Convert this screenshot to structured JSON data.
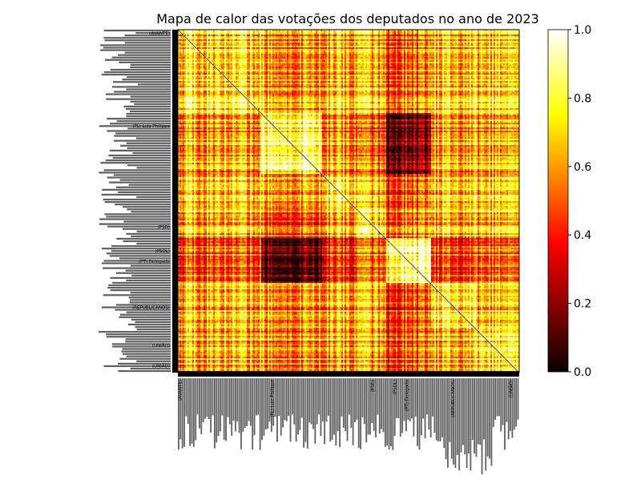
{
  "chart_data": {
    "type": "heatmap",
    "title": "Mapa de calor das votações dos deputados no ano de 2023",
    "xlabel": "",
    "ylabel": "",
    "colormap": "hot",
    "colorbar": {
      "range": [
        0,
        1
      ],
      "ticks": [
        "0.0",
        "0.2",
        "0.4",
        "0.6",
        "0.8",
        "1.0"
      ],
      "tick_values": [
        0,
        0.2,
        0.4,
        0.6,
        0.8,
        1.0
      ]
    },
    "diagonal_value": 1.0,
    "party_groups": [
      {
        "party": "AVANTE",
        "similarity_to": {
          "AVANTE": 0.7,
          "PL": 0.6,
          "PP": 0.65,
          "PSD": 0.65,
          "PSOL": 0.45,
          "PT": 0.5,
          "REPUBLICANOS": 0.65,
          "UNIÃO": 0.65
        }
      },
      {
        "party": "PL",
        "similarity_to": {
          "AVANTE": 0.6,
          "PL": 0.85,
          "PP": 0.6,
          "PSD": 0.5,
          "PSOL": 0.08,
          "PT": 0.1,
          "REPUBLICANOS": 0.6,
          "UNIÃO": 0.6
        }
      },
      {
        "party": "PP",
        "similarity_to": {
          "AVANTE": 0.65,
          "PL": 0.6,
          "PP": 0.75,
          "PSD": 0.65,
          "PSOL": 0.4,
          "PT": 0.45,
          "REPUBLICANOS": 0.65,
          "UNIÃO": 0.65
        }
      },
      {
        "party": "PSD",
        "similarity_to": {
          "AVANTE": 0.65,
          "PL": 0.5,
          "PP": 0.65,
          "PSD": 0.75,
          "PSOL": 0.5,
          "PT": 0.55,
          "REPUBLICANOS": 0.65,
          "UNIÃO": 0.65
        }
      },
      {
        "party": "PSOL",
        "similarity_to": {
          "AVANTE": 0.45,
          "PL": 0.08,
          "PP": 0.4,
          "PSD": 0.5,
          "PSOL": 0.9,
          "PT": 0.85,
          "REPUBLICANOS": 0.4,
          "UNIÃO": 0.45
        }
      },
      {
        "party": "PT",
        "similarity_to": {
          "AVANTE": 0.5,
          "PL": 0.1,
          "PP": 0.45,
          "PSD": 0.55,
          "PSOL": 0.85,
          "PT": 0.9,
          "REPUBLICANOS": 0.45,
          "UNIÃO": 0.5
        }
      },
      {
        "party": "REPUBLICANOS",
        "similarity_to": {
          "AVANTE": 0.65,
          "PL": 0.6,
          "PP": 0.65,
          "PSD": 0.65,
          "PSOL": 0.4,
          "PT": 0.45,
          "REPUBLICANOS": 0.75,
          "UNIÃO": 0.65
        }
      },
      {
        "party": "UNIÃO",
        "similarity_to": {
          "AVANTE": 0.65,
          "PL": 0.6,
          "PP": 0.65,
          "PSD": 0.65,
          "PSOL": 0.45,
          "PT": 0.5,
          "REPUBLICANOS": 0.65,
          "UNIÃO": 0.75
        }
      }
    ],
    "ylabels_legible": [
      {
        "text": "(AVANTE)",
        "fraction": 0.01
      },
      {
        "text": "(PL) Luiz Philippe",
        "fraction": 0.28
      },
      {
        "text": "(PSD)",
        "fraction": 0.575
      },
      {
        "text": "(PSOL)",
        "fraction": 0.645
      },
      {
        "text": "(PT) Delegado",
        "fraction": 0.675
      },
      {
        "text": "(REPUBLICANOS)",
        "fraction": 0.81
      },
      {
        "text": "(UNIÃO)",
        "fraction": 0.92
      },
      {
        "text": "(UNIÃO)",
        "fraction": 0.98
      }
    ],
    "xlabels_legible": [
      {
        "text": "(AVANTE)",
        "fraction": 0.01
      },
      {
        "text": "(PL) Luiz Philippe",
        "fraction": 0.28
      },
      {
        "text": "(PSD)",
        "fraction": 0.575
      },
      {
        "text": "(PSOL)",
        "fraction": 0.64
      },
      {
        "text": "(PT) Delegado",
        "fraction": 0.675
      },
      {
        "text": "(REPUBLICANOS)",
        "fraction": 0.81
      },
      {
        "text": "(UNIÃO)",
        "fraction": 0.98
      }
    ]
  }
}
